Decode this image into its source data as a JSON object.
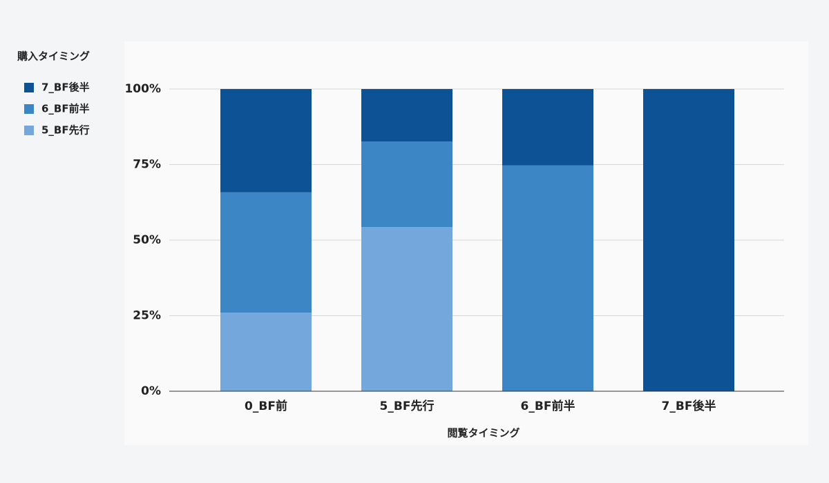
{
  "chart_data": {
    "type": "stacked_bar_100",
    "legend_title": "購入タイミング",
    "x_label": "閲覧タイミング",
    "categories": [
      "0_BF前",
      "5_BF先行",
      "6_BF前半",
      "7_BF後半"
    ],
    "series": [
      {
        "name": "5_BF先行",
        "color": "#74a7dc",
        "values": [
          26.0,
          54.3,
          0,
          0
        ]
      },
      {
        "name": "6_BF前半",
        "color": "#3d86c6",
        "values": [
          39.8,
          28.3,
          74.7,
          0
        ]
      },
      {
        "name": "7_BF後半",
        "color": "#0d5295",
        "values": [
          34.2,
          17.4,
          25.3,
          100
        ]
      }
    ],
    "ylim": [
      0,
      100
    ],
    "yticks": [
      {
        "value": 0,
        "label": "0%"
      },
      {
        "value": 25,
        "label": "25%"
      },
      {
        "value": 50,
        "label": "50%"
      },
      {
        "value": 75,
        "label": "75%"
      },
      {
        "value": 100,
        "label": "100%"
      }
    ],
    "grid": true,
    "legend": "left"
  }
}
